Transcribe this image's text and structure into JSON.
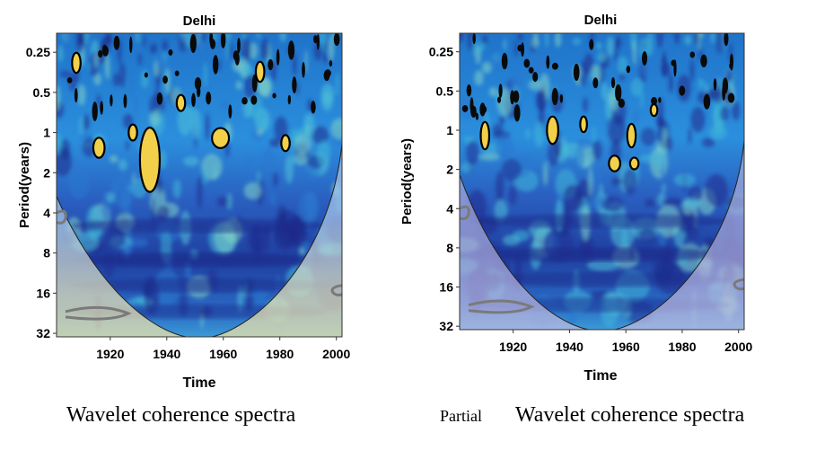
{
  "chart_data": [
    {
      "type": "heatmap",
      "title": "Delhi",
      "xlabel": "Time",
      "ylabel": "Period(years)",
      "x_ticks": [
        1920,
        1940,
        1960,
        1980,
        2000
      ],
      "x_tick_labels": [
        "1920",
        "1940",
        "1960",
        "1980",
        "2000"
      ],
      "y_ticks": [
        0.25,
        0.5,
        1,
        2,
        4,
        8,
        16,
        32
      ],
      "y_tick_labels": [
        "0.25",
        "0.5",
        "1",
        "2",
        "4",
        "8",
        "16",
        "32"
      ],
      "xlim": [
        1901,
        2002
      ],
      "ylim": [
        0.18,
        34
      ],
      "y_scale": "log2",
      "significant_regions": [
        {
          "time": 1916,
          "period": 1.3,
          "dt": 2,
          "dp": 0.25
        },
        {
          "time": 1934,
          "period": 1.6,
          "dt": 3.5,
          "dp": 0.8
        },
        {
          "time": 1928,
          "period": 1.0,
          "dt": 1.5,
          "dp": 0.2
        },
        {
          "time": 1959,
          "period": 1.1,
          "dt": 3,
          "dp": 0.25
        },
        {
          "time": 1982,
          "period": 1.2,
          "dt": 1.5,
          "dp": 0.2
        },
        {
          "time": 1945,
          "period": 0.6,
          "dt": 1.5,
          "dp": 0.2
        },
        {
          "time": 1908,
          "period": 0.3,
          "dt": 1.5,
          "dp": 0.25
        },
        {
          "time": 1973,
          "period": 0.35,
          "dt": 1.5,
          "dp": 0.25
        }
      ]
    },
    {
      "type": "heatmap",
      "title": "Delhi",
      "xlabel": "Time",
      "ylabel": "Period(years)",
      "x_ticks": [
        1920,
        1940,
        1960,
        1980,
        2000
      ],
      "x_tick_labels": [
        "1920",
        "1940",
        "1960",
        "1980",
        "2000"
      ],
      "y_ticks": [
        0.25,
        0.5,
        1,
        2,
        4,
        8,
        16,
        32
      ],
      "y_tick_labels": [
        "0.25",
        "0.5",
        "1",
        "2",
        "4",
        "8",
        "16",
        "32"
      ],
      "xlim": [
        1901,
        2002
      ],
      "ylim": [
        0.18,
        34
      ],
      "y_scale": "log2",
      "significant_regions": [
        {
          "time": 1910,
          "period": 1.1,
          "dt": 1.5,
          "dp": 0.35
        },
        {
          "time": 1934,
          "period": 1.0,
          "dt": 2,
          "dp": 0.35
        },
        {
          "time": 1945,
          "period": 0.9,
          "dt": 1.2,
          "dp": 0.2
        },
        {
          "time": 1956,
          "period": 1.8,
          "dt": 2,
          "dp": 0.2
        },
        {
          "time": 1963,
          "period": 1.8,
          "dt": 1.5,
          "dp": 0.15
        },
        {
          "time": 1962,
          "period": 1.1,
          "dt": 1.5,
          "dp": 0.3
        },
        {
          "time": 1970,
          "period": 0.7,
          "dt": 1.2,
          "dp": 0.15
        }
      ]
    }
  ],
  "captions": {
    "left": "Wavelet coherence spectra",
    "right_prefix": "Partial",
    "right": "Wavelet coherence spectra"
  },
  "colors": {
    "deep": "#1e2a8a",
    "mid": "#2a78d0",
    "cyan": "#3fb7d8",
    "yellow": "#f3d04a",
    "contour": "#000000"
  }
}
